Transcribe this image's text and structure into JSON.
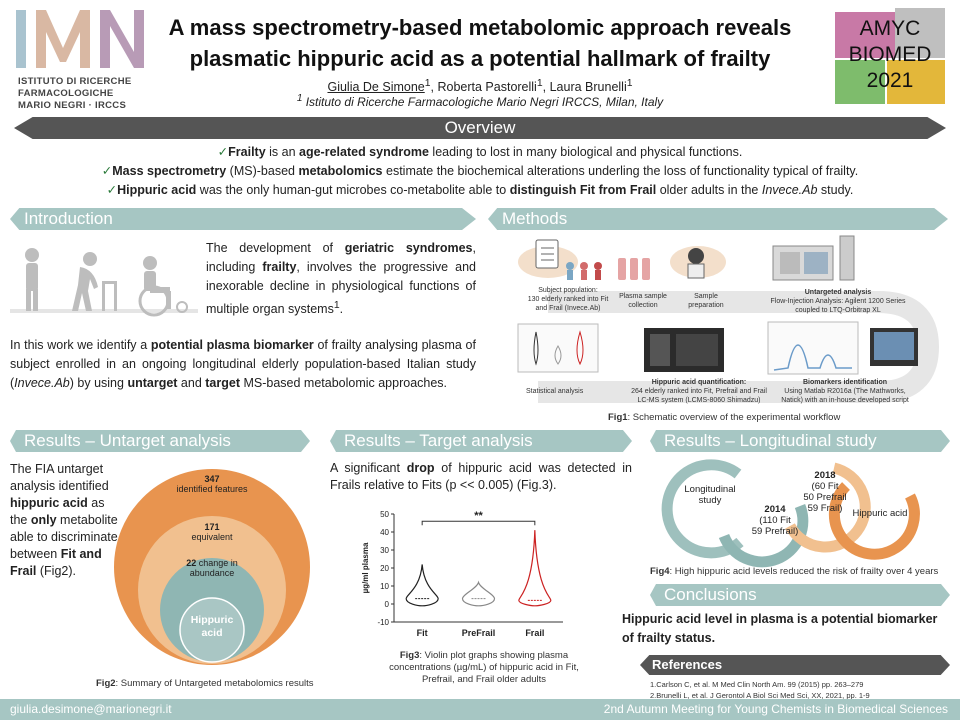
{
  "logo": {
    "line1": "ISTITUTO DI RICERCHE",
    "line2": "FARMACOLOGICHE",
    "line3": "MARIO NEGRI · IRCCS"
  },
  "header": {
    "title_line1": "A mass spectrometry-based metabolomic approach reveals",
    "title_line2": "plasmatic hippuric acid as a potential hallmark of frailty",
    "authors": [
      {
        "name": "Giulia De Simone",
        "sup": "1"
      },
      {
        "name": "Roberta Pastorelli",
        "sup": "1"
      },
      {
        "name": "Laura Brunelli",
        "sup": "1"
      }
    ],
    "affil_sup": "1",
    "affiliation": "Istituto di Ricerche Farmacologiche Mario Negri IRCCS, Milan, Italy"
  },
  "event_logo": {
    "line1": "AMYC",
    "line2": "BIOMED",
    "line3": "2021"
  },
  "overview": {
    "heading": "Overview",
    "l1_a": "Frailty",
    "l1_b": " is an ",
    "l1_c": "age-related syndrome",
    "l1_d": " leading to lost in many biological and physical functions.",
    "l2_a": "Mass spectrometry",
    "l2_b": " (MS)-based ",
    "l2_c": "metabolomics",
    "l2_d": " estimate the biochemical alterations underling the loss of functionality typical of frailty.",
    "l3_a": "Hippuric acid",
    "l3_b": " was the only human-gut microbes co-metabolite able to ",
    "l3_c": "distinguish Fit from Frail",
    "l3_d": " older adults in the ",
    "l3_e": "Invece.Ab",
    "l3_f": " study."
  },
  "introduction": {
    "heading": "Introduction",
    "p1_a": "The development of ",
    "p1_b": "geriatric syndromes",
    "p1_c": ", including ",
    "p1_d": "frailty",
    "p1_e": ", involves the progressive and inexorable decline in physiological functions of multiple organ systems",
    "p1_sup": "1",
    "p1_f": ".",
    "p2_a": "In this work we identify a ",
    "p2_b": "potential plasma biomarker",
    "p2_c": " of frailty analysing plasma of subject enrolled in an ongoing longitudinal elderly population-based Italian study (",
    "p2_d": "Invece.Ab",
    "p2_e": ") by using ",
    "p2_f": "untarget",
    "p2_g": " and ",
    "p2_h": "target",
    "p2_i": " MS-based metabolomic approaches."
  },
  "methods": {
    "heading": "Methods",
    "subject_pop": "Subject population:",
    "subject_pop2": "130 elderly ranked into Fit",
    "subject_pop3": "and Frail (Invece.Ab)",
    "plasma_col": "Plasma sample",
    "plasma_col2": "collection",
    "prep": "Sample",
    "prep2": "preparation",
    "untarget": "Untargeted analysis",
    "fia": "Flow-Injection Analysis: Agilent 1200 Series",
    "fia2": "coupled to LTQ-Orbitrap XL",
    "stat": "Statistical analysis",
    "hippuric_q": "Hippuric acid quantification:",
    "hippuric_q2": "264 elderly ranked into Fit, Prefrail and Frail",
    "hippuric_q3": "LC-MS system (LCMS-8060 Shimadzu)",
    "biomarkers": "Biomarkers identification",
    "biomarkers2": "Using Matlab R2016a (The Mathworks,",
    "biomarkers3": "Natick) with an in-house developed script",
    "fig_label": "Fig1",
    "fig_caption": ": Schematic overview of the experimental workflow"
  },
  "untarget": {
    "heading": "Results – Untarget analysis",
    "text_a": "The FIA untarget analysis identified ",
    "text_b": "hippuric acid",
    "text_c": " as the ",
    "text_d": "only",
    "text_e": " metabolite able to discriminate between ",
    "text_f": "Fit and Frail",
    "text_g": " (Fig2).",
    "c1_num": "347",
    "c1_label": "identified features",
    "c2_num": "171",
    "c2_label": "equivalent",
    "c3_num": "22",
    "c3_label": "change in abundance",
    "c4_label": "Hippuric acid",
    "fig_label": "Fig2",
    "fig_caption": ": Summary of Untargeted metabolomics results"
  },
  "target": {
    "heading": "Results – Target analysis",
    "text_a": "A significant ",
    "text_b": "drop",
    "text_c": " of hippuric acid was detected in Frails relative to Fits (p << 0.005) (Fig.3).",
    "fig_label": "Fig3",
    "fig_caption1": ": Violin plot graphs showing plasma",
    "fig_caption2": "concentrations (µg/mL) of hippuric acid in Fit,",
    "fig_caption3": "Prefrail, and Frail older adults"
  },
  "chart_data": {
    "type": "violin",
    "categories": [
      "Fit",
      "PreFrail",
      "Frail"
    ],
    "ylabel": "µg/ml plasma",
    "ylim": [
      -10,
      50
    ],
    "yticks": [
      -10,
      0,
      10,
      20,
      30,
      40,
      50
    ],
    "max_values": [
      22,
      12,
      41
    ],
    "medians": [
      3,
      3,
      2
    ],
    "significance": "**",
    "colors": [
      "#222222",
      "#888888",
      "#cc2222"
    ]
  },
  "longitudinal": {
    "heading": "Results – Longitudinal study",
    "c1": "Longitudinal study",
    "c2_year": "2014",
    "c2_a": "(110 Fit",
    "c2_b": "59 Prefrail)",
    "c3_year": "2018",
    "c3_a": "(60 Fit",
    "c3_b": "50 Prefrail",
    "c3_c": "59 Frail)",
    "c4": "Hippuric acid",
    "fig_label": "Fig4",
    "fig_caption": ": High hippuric acid levels reduced the risk of frailty over 4 years"
  },
  "conclusions": {
    "heading": "Conclusions",
    "text": "Hippuric acid level in plasma is a potential biomarker of frailty status."
  },
  "references": {
    "heading": "References",
    "r1": "1.Carlson C, et al. M Med Clin North Am. 99 (2015) pp. 263–279",
    "r2": "2.Brunelli L, et al. J Gerontol A Biol Sci Med Sci, XX, 2021, pp. 1-9"
  },
  "footer": {
    "email": "giulia.desimone@marionegri.it",
    "meeting": "2nd Autumn Meeting for Young Chemists in Biomedical Sciences"
  },
  "colors": {
    "teal": "#a6c6c3",
    "dark_banner": "#555555",
    "orange": "#e8944f",
    "peach": "#f1c08f",
    "circle_teal": "#8fb6b3"
  }
}
